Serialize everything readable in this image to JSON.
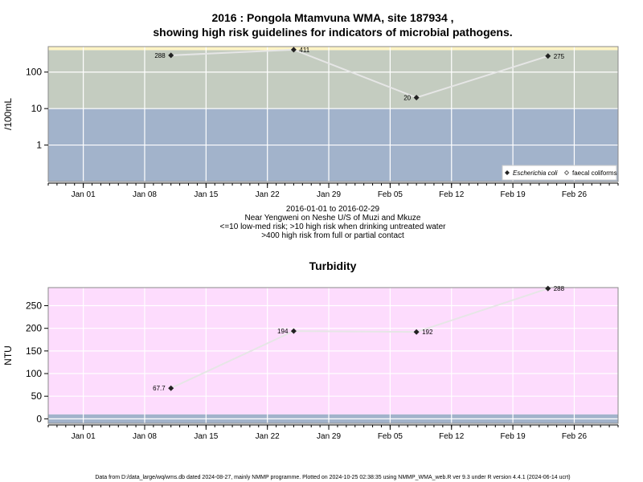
{
  "chart_data": [
    {
      "type": "line",
      "title_line1": "2016 : Pongola Mtamvuna WMA, site 187934 ,",
      "title_line2": "showing high risk guidelines for indicators of microbial pathogens.",
      "ylabel": "/100mL",
      "y_scale": "log",
      "ylim": [
        0.1,
        500
      ],
      "yticks": [
        "1",
        "10",
        "100"
      ],
      "y_tick_values": [
        1,
        10,
        100
      ],
      "risk_bands": [
        {
          "from": 0.1,
          "to": 10,
          "color": "#a2b3cb"
        },
        {
          "from": 10,
          "to": 400,
          "color": "#c4ccc0"
        },
        {
          "from": 400,
          "to": 500,
          "color": "#fff4c4"
        }
      ],
      "x_range": [
        "2015-12-28",
        "2016-03-02"
      ],
      "x_tick_labels": [
        "Jan 01",
        "Jan 08",
        "Jan 15",
        "Jan 22",
        "Jan 29",
        "Feb 05",
        "Feb 12",
        "Feb 19",
        "Feb 26"
      ],
      "x_tick_dates": [
        "2016-01-01",
        "2016-01-08",
        "2016-01-15",
        "2016-01-22",
        "2016-01-29",
        "2016-02-05",
        "2016-02-12",
        "2016-02-19",
        "2016-02-26"
      ],
      "grid": true,
      "series": [
        {
          "name": "Escherichia coli",
          "marker": "diamond",
          "color": "#222222",
          "line_color": "#e6e6e6",
          "points": [
            {
              "date": "2016-01-11",
              "value": 288,
              "label": "288",
              "label_side": "left"
            },
            {
              "date": "2016-01-25",
              "value": 411,
              "label": "411",
              "label_side": "right"
            },
            {
              "date": "2016-02-08",
              "value": 20,
              "label": "20",
              "label_side": "left"
            },
            {
              "date": "2016-02-23",
              "value": 275,
              "label": "275",
              "label_side": "right"
            }
          ]
        }
      ],
      "legend": {
        "placement": "bottom-right",
        "items": [
          {
            "name": "Escherichia coli",
            "italic": true,
            "marker": "diamond"
          },
          {
            "name": "faecal coliforms",
            "italic": false,
            "marker": "diamond-open"
          }
        ]
      },
      "notes": [
        "2016-01-01 to 2016-02-29",
        "Near Yengweni on Neshe U/S of Muzi and Mkuze",
        "<=10 low-med risk; >10 high risk when drinking untreated water",
        ">400 high risk from full or partial contact"
      ]
    },
    {
      "type": "line",
      "title": "Turbidity",
      "ylabel": "NTU",
      "y_scale": "linear",
      "ylim": [
        -10,
        290
      ],
      "yticks": [
        "0",
        "50",
        "100",
        "150",
        "200",
        "250"
      ],
      "y_tick_values": [
        0,
        50,
        100,
        150,
        200,
        250
      ],
      "bands": [
        {
          "from": -10,
          "to": 10,
          "color": "#a2b3cb"
        },
        {
          "from": 10,
          "to": 290,
          "color": "#fddcfd"
        }
      ],
      "x_range": [
        "2015-12-28",
        "2016-03-02"
      ],
      "x_tick_labels": [
        "Jan 01",
        "Jan 08",
        "Jan 15",
        "Jan 22",
        "Jan 29",
        "Feb 05",
        "Feb 12",
        "Feb 19",
        "Feb 26"
      ],
      "x_tick_dates": [
        "2016-01-01",
        "2016-01-08",
        "2016-01-15",
        "2016-01-22",
        "2016-01-29",
        "2016-02-05",
        "2016-02-12",
        "2016-02-19",
        "2016-02-26"
      ],
      "grid": true,
      "series": [
        {
          "marker": "diamond",
          "color": "#222222",
          "line_color": "#e6e6e6",
          "points": [
            {
              "date": "2016-01-11",
              "value": 67.7,
              "label": "67.7",
              "label_side": "left"
            },
            {
              "date": "2016-01-25",
              "value": 194,
              "label": "194",
              "label_side": "left"
            },
            {
              "date": "2016-02-08",
              "value": 192,
              "label": "192",
              "label_side": "right"
            },
            {
              "date": "2016-02-23",
              "value": 288,
              "label": "288",
              "label_side": "right"
            }
          ]
        }
      ]
    }
  ],
  "footer": "Data from D:/data_large/wq/wms.db dated 2024-08-27, mainly NMMP programme. Plotted on 2024-10-25 02:38:35 using NMMP_WMA_web.R ver 9.3 under R version 4.4.1 (2024-06-14 ucrt)"
}
